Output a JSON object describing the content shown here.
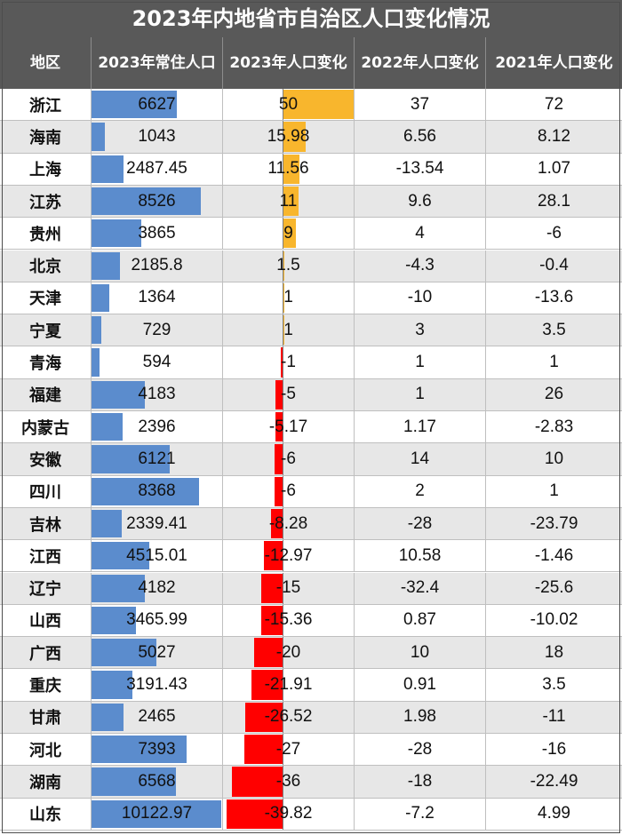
{
  "title": "2023年内地省市自治区人口变化情况",
  "headers": [
    "地区",
    "2023年常住人口",
    "2023年人口变化",
    "2022年人口变化",
    "2021年人口变化"
  ],
  "colors": {
    "header_bg": "#595959",
    "population_bar": "#5b8ccd",
    "positive_bar": "#f8b62d",
    "negative_bar": "#ff0000",
    "alt_row": "#e7e7e7"
  },
  "chart_data": {
    "type": "table",
    "title": "2023年内地省市自治区人口变化情况",
    "columns": [
      "地区",
      "2023年常住人口",
      "2023年人口变化",
      "2022年人口变化",
      "2021年人口变化"
    ],
    "rows": [
      {
        "region": "浙江",
        "pop": "6627",
        "c23": "50",
        "c22": "37",
        "c21": "72"
      },
      {
        "region": "海南",
        "pop": "1043",
        "c23": "15.98",
        "c22": "6.56",
        "c21": "8.12"
      },
      {
        "region": "上海",
        "pop": "2487.45",
        "c23": "11.56",
        "c22": "-13.54",
        "c21": "1.07"
      },
      {
        "region": "江苏",
        "pop": "8526",
        "c23": "11",
        "c22": "9.6",
        "c21": "28.1"
      },
      {
        "region": "贵州",
        "pop": "3865",
        "c23": "9",
        "c22": "4",
        "c21": "-6"
      },
      {
        "region": "北京",
        "pop": "2185.8",
        "c23": "1.5",
        "c22": "-4.3",
        "c21": "-0.4"
      },
      {
        "region": "天津",
        "pop": "1364",
        "c23": "1",
        "c22": "-10",
        "c21": "-13.6"
      },
      {
        "region": "宁夏",
        "pop": "729",
        "c23": "1",
        "c22": "3",
        "c21": "3.5"
      },
      {
        "region": "青海",
        "pop": "594",
        "c23": "-1",
        "c22": "1",
        "c21": "1"
      },
      {
        "region": "福建",
        "pop": "4183",
        "c23": "-5",
        "c22": "1",
        "c21": "26"
      },
      {
        "region": "内蒙古",
        "pop": "2396",
        "c23": "-5.17",
        "c22": "1.17",
        "c21": "-2.83"
      },
      {
        "region": "安徽",
        "pop": "6121",
        "c23": "-6",
        "c22": "14",
        "c21": "10"
      },
      {
        "region": "四川",
        "pop": "8368",
        "c23": "-6",
        "c22": "2",
        "c21": "1"
      },
      {
        "region": "吉林",
        "pop": "2339.41",
        "c23": "-8.28",
        "c22": "-28",
        "c21": "-23.79"
      },
      {
        "region": "江西",
        "pop": "4515.01",
        "c23": "-12.97",
        "c22": "10.58",
        "c21": "-1.46"
      },
      {
        "region": "辽宁",
        "pop": "4182",
        "c23": "-15",
        "c22": "-32.4",
        "c21": "-25.6"
      },
      {
        "region": "山西",
        "pop": "3465.99",
        "c23": "-15.36",
        "c22": "0.87",
        "c21": "-10.02"
      },
      {
        "region": "广西",
        "pop": "5027",
        "c23": "-20",
        "c22": "10",
        "c21": "18"
      },
      {
        "region": "重庆",
        "pop": "3191.43",
        "c23": "-21.91",
        "c22": "0.91",
        "c21": "3.5"
      },
      {
        "region": "甘肃",
        "pop": "2465",
        "c23": "-26.52",
        "c22": "1.98",
        "c21": "-11"
      },
      {
        "region": "河北",
        "pop": "7393",
        "c23": "-27",
        "c22": "-28",
        "c21": "-16"
      },
      {
        "region": "湖南",
        "pop": "6568",
        "c23": "-36",
        "c22": "-18",
        "c21": "-22.49"
      },
      {
        "region": "山东",
        "pop": "10122.97",
        "c23": "-39.82",
        "c22": "-7.2",
        "c21": "4.99"
      }
    ]
  }
}
